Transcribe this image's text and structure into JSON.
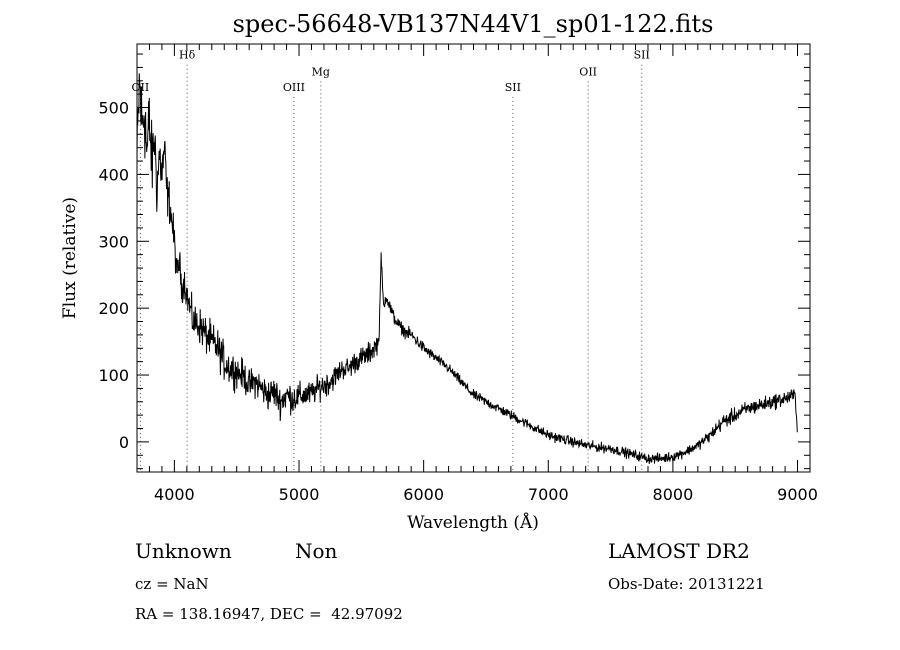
{
  "chart_data": {
    "type": "line",
    "title": "spec-56648-VB137N44V1_sp01-122.fits",
    "xlabel": "Wavelength (Å)",
    "ylabel": "Flux (relative)",
    "xlim": [
      3700,
      9100
    ],
    "ylim": [
      -45,
      595
    ],
    "xticks": [
      4000,
      5000,
      6000,
      7000,
      8000,
      9000
    ],
    "yticks": [
      0,
      100,
      200,
      300,
      400,
      500
    ],
    "grid": false,
    "line_color": "#000000",
    "spectral_line_marker_color": "#555555",
    "spectral_lines": [
      {
        "label": "OII",
        "wavelength": 3727,
        "label_flux": 525
      },
      {
        "label": "Hδ",
        "wavelength": 4102,
        "label_flux": 573
      },
      {
        "label": "OIII",
        "wavelength": 4959,
        "label_flux": 525
      },
      {
        "label": "Mg",
        "wavelength": 5175,
        "label_flux": 548
      },
      {
        "label": "SII",
        "wavelength": 6716,
        "label_flux": 525
      },
      {
        "label": "OII",
        "wavelength": 7320,
        "label_flux": 548
      },
      {
        "label": "SII",
        "wavelength": 7750,
        "label_flux": 573
      }
    ],
    "series": [
      {
        "x": [
          3700,
          3720,
          3740,
          3760,
          3780,
          3800,
          3820,
          3840,
          3860,
          3880,
          3900,
          3920,
          3940,
          3960,
          3980,
          4000,
          4020,
          4040,
          4060,
          4080,
          4100,
          4150,
          4200,
          4250,
          4300,
          4350,
          4400,
          4450,
          4500,
          4550,
          4600,
          4650,
          4700,
          4750,
          4800,
          4850,
          4900,
          4950,
          5000,
          5050,
          5100,
          5150,
          5200,
          5250,
          5300,
          5350,
          5400,
          5450,
          5500,
          5550,
          5600,
          5640,
          5660,
          5670,
          5680,
          5700,
          5750,
          5800,
          5850,
          5900,
          5950,
          6000,
          6100,
          6200,
          6300,
          6400,
          6500,
          6600,
          6700,
          6800,
          6900,
          7000,
          7100,
          7200,
          7300,
          7400,
          7500,
          7600,
          7700,
          7800,
          7900,
          8000,
          8100,
          8200,
          8300,
          8400,
          8500,
          8600,
          8700,
          8800,
          8900,
          8980,
          9000
        ],
        "y": [
          420,
          540,
          470,
          500,
          430,
          480,
          410,
          460,
          380,
          430,
          400,
          440,
          370,
          360,
          330,
          300,
          250,
          270,
          230,
          240,
          220,
          180,
          175,
          160,
          150,
          140,
          120,
          110,
          105,
          100,
          85,
          90,
          80,
          70,
          75,
          60,
          70,
          65,
          68,
          70,
          72,
          80,
          85,
          90,
          100,
          110,
          110,
          120,
          125,
          130,
          140,
          150,
          280,
          230,
          200,
          220,
          190,
          175,
          165,
          160,
          150,
          140,
          125,
          110,
          90,
          70,
          60,
          50,
          40,
          30,
          20,
          10,
          5,
          0,
          -5,
          -8,
          -10,
          -15,
          -20,
          -25,
          -25,
          -22,
          -15,
          -5,
          10,
          30,
          40,
          50,
          55,
          60,
          65,
          70,
          20
        ],
        "noise_amplitude": [
          70,
          80,
          75,
          80,
          70,
          65,
          60,
          55,
          50,
          45,
          40,
          40,
          35,
          35,
          30,
          30,
          25,
          25,
          25,
          25,
          25,
          30,
          30,
          30,
          30,
          30,
          30,
          30,
          25,
          25,
          25,
          25,
          25,
          25,
          25,
          25,
          25,
          25,
          22,
          22,
          20,
          20,
          20,
          20,
          18,
          18,
          18,
          18,
          18,
          18,
          18,
          15,
          10,
          10,
          12,
          12,
          12,
          10,
          10,
          10,
          10,
          10,
          8,
          8,
          8,
          8,
          8,
          8,
          8,
          8,
          8,
          8,
          8,
          8,
          8,
          8,
          8,
          8,
          8,
          8,
          8,
          8,
          8,
          8,
          10,
          12,
          12,
          12,
          12,
          12,
          12,
          12,
          12
        ]
      }
    ]
  },
  "info": {
    "class_label": "Unknown",
    "subclass_label": "Non",
    "survey_label": "LAMOST DR2",
    "cz_text": "cz = NaN",
    "obs_date_text": "Obs-Date: 20131221",
    "coords_text": "RA = 138.16947, DEC =  42.97092"
  }
}
